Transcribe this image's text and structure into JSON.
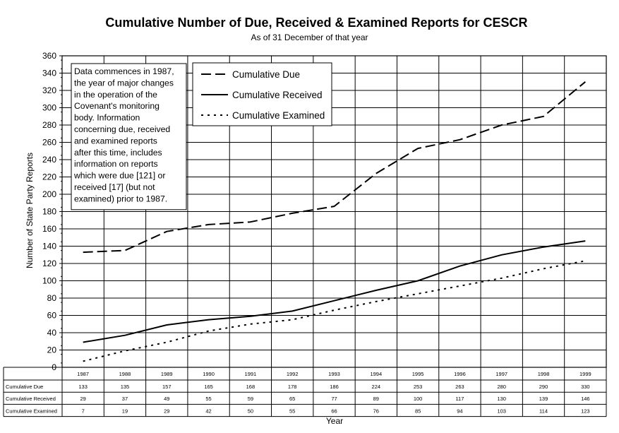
{
  "chart_data": {
    "type": "line",
    "title": "Cumulative Number of Due, Received & Examined Reports for CESCR",
    "subtitle": "As of 31 December of that year",
    "xlabel": "Year",
    "ylabel": "Number of State Party Reports",
    "ylim": [
      0,
      360
    ],
    "yticks": [
      0,
      20,
      40,
      60,
      80,
      100,
      120,
      140,
      160,
      180,
      200,
      220,
      240,
      260,
      280,
      300,
      320,
      340,
      360
    ],
    "grid": true,
    "legend_position": "top-center",
    "categories": [
      "1987",
      "1988",
      "1989",
      "1990",
      "1991",
      "1992",
      "1993",
      "1994",
      "1995",
      "1996",
      "1997",
      "1998",
      "1999"
    ],
    "series": [
      {
        "name": "Cumulative Due",
        "table_label": "Cumulative Due",
        "style": "dashed",
        "values": [
          133,
          135,
          157,
          165,
          168,
          178,
          186,
          224,
          253,
          263,
          280,
          290,
          330
        ]
      },
      {
        "name": "Cumulative Received",
        "table_label": "Cumulative Received",
        "style": "solid",
        "values": [
          29,
          37,
          49,
          55,
          59,
          65,
          77,
          89,
          100,
          117,
          130,
          139,
          146
        ]
      },
      {
        "name": "Cumulative Examined",
        "table_label": "Cumulative Examined",
        "style": "dotted",
        "values": [
          7,
          19,
          29,
          42,
          50,
          55,
          66,
          76,
          85,
          94,
          103,
          114,
          123
        ]
      }
    ],
    "annotation": {
      "lines": [
        "Data commences in 1987,",
        "the year of major changes",
        "in the operation of the",
        "Covenant's monitoring",
        "body. Information",
        "concerning due, received",
        "and examined reports",
        "after this time, includes",
        "information on reports",
        "which were due [121] or",
        "received [17] (but not",
        "examined) prior to 1987."
      ]
    },
    "colors": {
      "line": "#000000",
      "grid": "#000000",
      "background": "#ffffff"
    }
  }
}
